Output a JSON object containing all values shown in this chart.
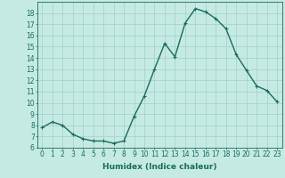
{
  "x": [
    0,
    1,
    2,
    3,
    4,
    5,
    6,
    7,
    8,
    9,
    10,
    11,
    12,
    13,
    14,
    15,
    16,
    17,
    18,
    19,
    20,
    21,
    22,
    23
  ],
  "y": [
    7.8,
    8.3,
    8.0,
    7.2,
    6.8,
    6.6,
    6.6,
    6.4,
    6.6,
    8.8,
    10.6,
    13.0,
    15.3,
    14.1,
    17.1,
    18.4,
    18.1,
    17.5,
    16.6,
    14.3,
    12.9,
    11.5,
    11.1,
    10.1
  ],
  "line_color": "#1a6b5a",
  "marker": "+",
  "marker_size": 3,
  "bg_color": "#c5eae4",
  "grid_color": "#a0d0c8",
  "xlabel": "Humidex (Indice chaleur)",
  "xlim": [
    -0.5,
    23.5
  ],
  "ylim": [
    6,
    19
  ],
  "yticks": [
    6,
    7,
    8,
    9,
    10,
    11,
    12,
    13,
    14,
    15,
    16,
    17,
    18
  ],
  "xticks": [
    0,
    1,
    2,
    3,
    4,
    5,
    6,
    7,
    8,
    9,
    10,
    11,
    12,
    13,
    14,
    15,
    16,
    17,
    18,
    19,
    20,
    21,
    22,
    23
  ],
  "xlabel_fontsize": 6.5,
  "tick_fontsize": 5.5,
  "axis_color": "#1a6b5a",
  "line_width": 1.0
}
